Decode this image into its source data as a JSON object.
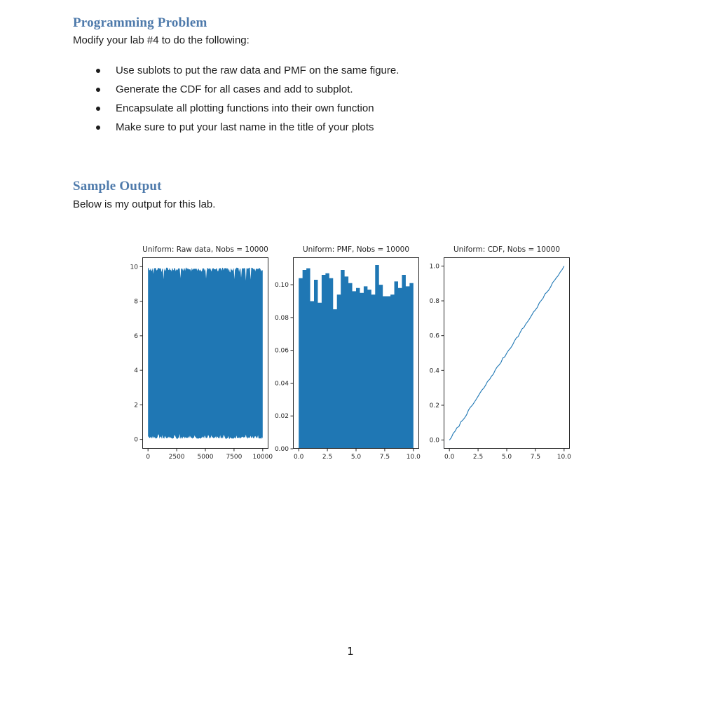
{
  "headings": {
    "programming_problem": "Programming Problem",
    "sample_output": "Sample Output"
  },
  "paragraphs": {
    "modify_lab": "Modify your lab #4 to do the following:",
    "below_output": "Below is my output for this lab."
  },
  "bullets": [
    "Use sublots to put the raw data and PMF on the same figure.",
    "Generate the CDF for all cases and add to subplot.",
    "Encapsulate all plotting functions into their own function",
    "Make sure to put your last name in the title of your plots"
  ],
  "page": {
    "number": "1"
  },
  "colors": {
    "heading_blue": "#4e7aab",
    "plot_blue": "#1f77b4",
    "axis_ink": "#262626",
    "body_text": "#1c1c1c"
  },
  "chart_data": [
    {
      "id": "raw-data",
      "type": "raw_series",
      "title": "Uniform: Raw data, Nobs = 10000",
      "n_obs": 10000,
      "x_min": 0,
      "x_max": 10000,
      "value_min": 0,
      "value_max": 10,
      "xlim": [
        -500,
        10500
      ],
      "ylim": [
        -0.545,
        10.545
      ],
      "x_tick_values": [
        0,
        2500,
        5000,
        7500,
        10000
      ],
      "x_tick_labels": [
        "0",
        "2500",
        "5000",
        "7500",
        "10000"
      ],
      "y_tick_values": [
        0,
        2,
        4,
        6,
        8,
        10
      ],
      "y_tick_labels": [
        "0",
        "2",
        "4",
        "6",
        "8",
        "10"
      ],
      "color": "#1f77b4",
      "noise_seed": 42
    },
    {
      "id": "pmf",
      "type": "bar",
      "title": "Uniform: PMF, Nobs = 10000",
      "bin_start": 0,
      "bin_end": 10,
      "values": [
        0.104,
        0.109,
        0.11,
        0.09,
        0.103,
        0.089,
        0.106,
        0.107,
        0.104,
        0.085,
        0.094,
        0.109,
        0.105,
        0.101,
        0.096,
        0.098,
        0.095,
        0.099,
        0.097,
        0.094,
        0.112,
        0.1,
        0.093,
        0.093,
        0.094,
        0.102,
        0.098,
        0.106,
        0.099,
        0.101
      ],
      "xlim": [
        -0.5,
        10.5
      ],
      "ylim": [
        0,
        0.1167
      ],
      "x_tick_values": [
        0,
        2.5,
        5,
        7.5,
        10
      ],
      "x_tick_labels": [
        "0.0",
        "2.5",
        "5.0",
        "7.5",
        "10.0"
      ],
      "y_tick_values": [
        0,
        0.02,
        0.04,
        0.06,
        0.08,
        0.1
      ],
      "y_tick_labels": [
        "0.00",
        "0.02",
        "0.04",
        "0.06",
        "0.08",
        "0.10"
      ],
      "color": "#1f77b4"
    },
    {
      "id": "cdf",
      "type": "line",
      "title": "Uniform: CDF, Nobs = 10000",
      "x_start": 0,
      "x_end": 10,
      "y_start": 0,
      "y_end": 1,
      "xlim": [
        -0.5,
        10.5
      ],
      "ylim": [
        -0.05,
        1.05
      ],
      "x_tick_values": [
        0,
        2.5,
        5,
        7.5,
        10
      ],
      "x_tick_labels": [
        "0.0",
        "2.5",
        "5.0",
        "7.5",
        "10.0"
      ],
      "y_tick_values": [
        0,
        0.2,
        0.4,
        0.6,
        0.8,
        1.0
      ],
      "y_tick_labels": [
        "0.0",
        "0.2",
        "0.4",
        "0.6",
        "0.8",
        "1.0"
      ],
      "color": "#1f77b4",
      "noise_seed": 7
    }
  ]
}
